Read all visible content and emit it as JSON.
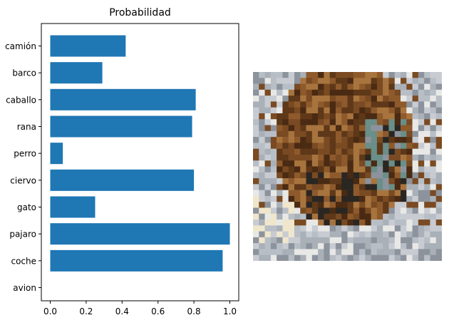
{
  "chart_data": {
    "type": "bar",
    "orientation": "horizontal",
    "title": "Probabilidad",
    "xlabel": "",
    "ylabel": "",
    "categories": [
      "avion",
      "coche",
      "pajaro",
      "gato",
      "ciervo",
      "perro",
      "rana",
      "caballo",
      "barco",
      "camión"
    ],
    "values": [
      0.0,
      0.96,
      1.0,
      0.25,
      0.8,
      0.07,
      0.79,
      0.81,
      0.29,
      0.42
    ],
    "xlim": [
      0,
      1.05
    ],
    "xticks": [
      "0.0",
      "0.2",
      "0.4",
      "0.6",
      "0.8",
      "1.0"
    ],
    "grid": false,
    "bar_color": "#1f77b4"
  },
  "image_panel": {
    "icon": "animal-thumbnail",
    "palette": {
      "brown_dark": "#4a2a12",
      "brown": "#7a4a22",
      "brown_light": "#a8743e",
      "grey_light": "#c8ccd2",
      "grey": "#8c939c",
      "white": "#e8e8e6",
      "cream": "#efe6cc",
      "teal": "#6a8e88",
      "dark": "#2a2622"
    }
  }
}
